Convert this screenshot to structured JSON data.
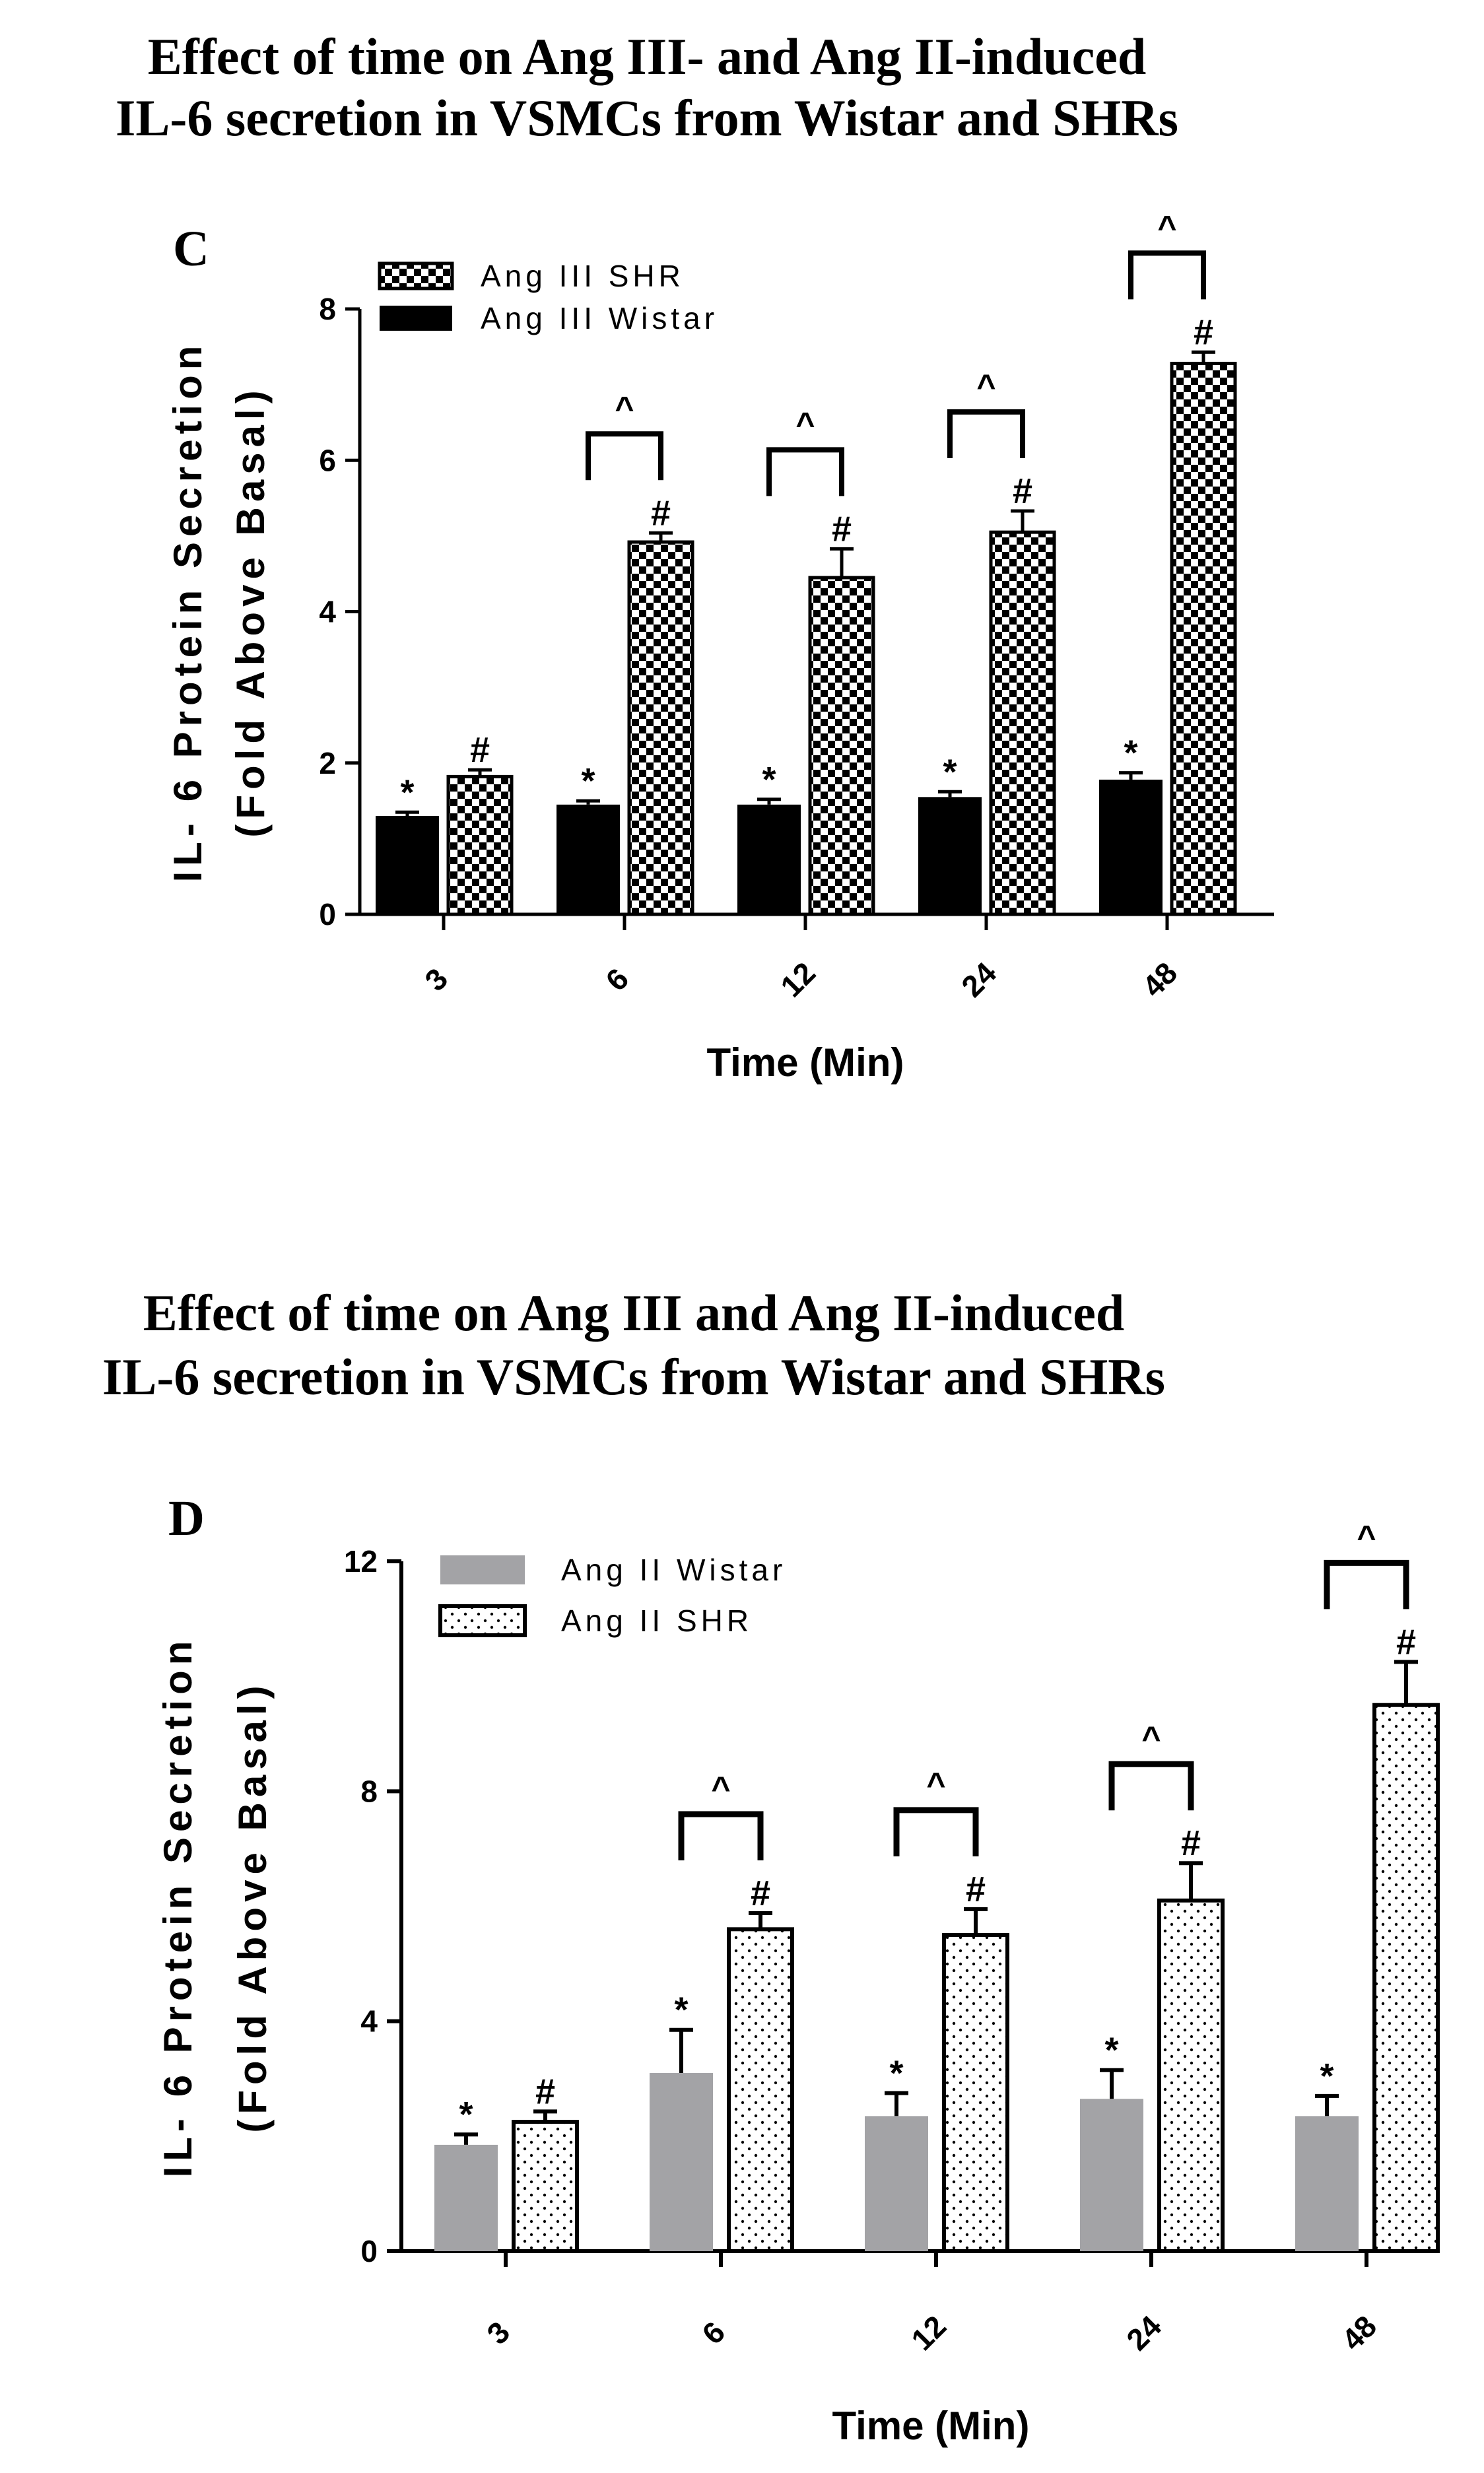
{
  "chart_data": [
    {
      "type": "bar",
      "panel": "C",
      "title_lines": [
        "Effect of time on Ang III-  and Ang II-induced",
        "IL-6 secretion in VSMCs from Wistar and SHRs"
      ],
      "ylabel_lines": [
        "IL- 6 Protein Secretion",
        "(Fold Above Basal)"
      ],
      "xlabel": "Time (Min)",
      "categories": [
        "3",
        "6",
        "12",
        "24",
        "48"
      ],
      "ylim": [
        0,
        8
      ],
      "yticks": [
        "0",
        "2",
        "4",
        "6",
        "8"
      ],
      "legend_order": [
        "Ang III SHR",
        "Ang III Wistar"
      ],
      "series": [
        {
          "name": "Ang III Wistar",
          "style": "solid",
          "color": "#000000",
          "values": [
            1.3,
            1.45,
            1.45,
            1.55,
            1.78
          ],
          "errors": [
            0.05,
            0.05,
            0.07,
            0.07,
            0.09
          ],
          "marks": [
            "*",
            "*",
            "*",
            "*",
            "*"
          ]
        },
        {
          "name": "Ang III SHR",
          "style": "checker",
          "color": "#000000",
          "values": [
            1.82,
            4.92,
            4.45,
            5.05,
            7.28
          ],
          "errors": [
            0.09,
            0.12,
            0.38,
            0.28,
            0.15
          ],
          "marks": [
            "#",
            "#",
            "#",
            "#",
            "#"
          ]
        }
      ],
      "comparisons": [
        {
          "category": "6",
          "label": "^"
        },
        {
          "category": "12",
          "label": "^"
        },
        {
          "category": "24",
          "label": "^"
        },
        {
          "category": "48",
          "label": "^"
        }
      ]
    },
    {
      "type": "bar",
      "panel": "D",
      "title_lines": [
        "Effect of time on Ang III and Ang II-induced",
        "IL-6 secretion in VSMCs from Wistar and SHRs"
      ],
      "ylabel_lines": [
        "IL- 6 Protein Secretion",
        "(Fold Above Basal)"
      ],
      "xlabel": "Time (Min)",
      "categories": [
        "3",
        "6",
        "12",
        "24",
        "48"
      ],
      "ylim": [
        0,
        12
      ],
      "yticks": [
        "0",
        "4",
        "8",
        "12"
      ],
      "legend_order": [
        "Ang II Wistar",
        "Ang II SHR"
      ],
      "series": [
        {
          "name": "Ang II Wistar",
          "style": "gray",
          "color": "#a3a3a6",
          "values": [
            1.85,
            3.1,
            2.35,
            2.65,
            2.35
          ],
          "errors": [
            0.18,
            0.75,
            0.4,
            0.5,
            0.35
          ],
          "marks": [
            "*",
            "*",
            "*",
            "*",
            "*"
          ]
        },
        {
          "name": "Ang II SHR",
          "style": "dotted",
          "color": "#000000",
          "values": [
            2.25,
            5.6,
            5.5,
            6.1,
            9.5
          ],
          "errors": [
            0.18,
            0.28,
            0.45,
            0.65,
            0.75
          ],
          "marks": [
            "#",
            "#",
            "#",
            "#",
            "#"
          ]
        }
      ],
      "comparisons": [
        {
          "category": "6",
          "label": "^"
        },
        {
          "category": "12",
          "label": "^"
        },
        {
          "category": "24",
          "label": "^"
        },
        {
          "category": "48",
          "label": "^"
        }
      ]
    }
  ]
}
